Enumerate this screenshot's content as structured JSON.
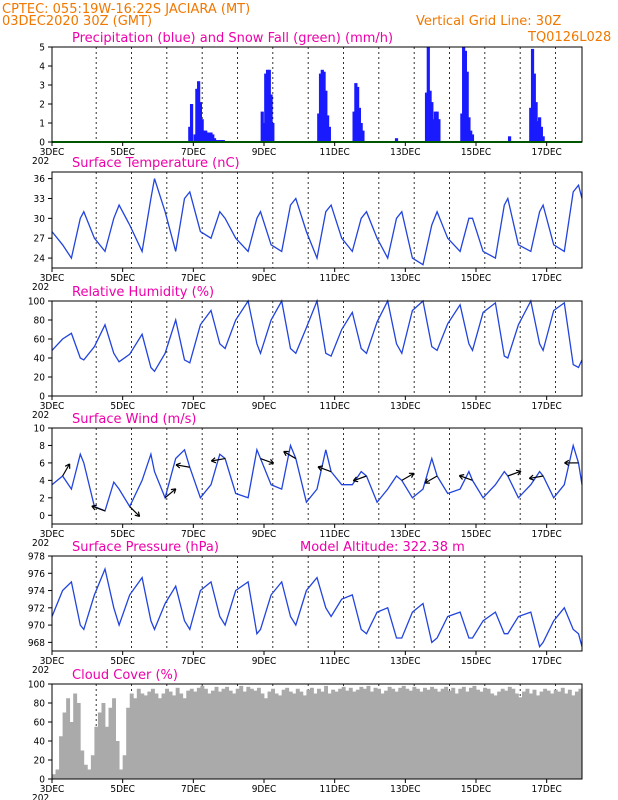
{
  "header": {
    "line1": "CPTEC:   055:19W-16:22S   JACIARA (MT)",
    "line2": "03DEC2020 30Z (GMT)",
    "grid_note": "Vertical Grid Line: 30Z",
    "code": "TQ0126L028"
  },
  "x_axis": {
    "range_days": [
      3,
      18
    ],
    "tick_labels": [
      "3DEC",
      "5DEC",
      "7DEC",
      "9DEC",
      "11DEC",
      "13DEC",
      "15DEC",
      "17DEC"
    ],
    "tick_days": [
      3,
      5,
      7,
      9,
      11,
      13,
      15,
      17
    ],
    "grid_days": [
      4.25,
      5.25,
      6.25,
      7.25,
      8.25,
      9.25,
      10.25,
      11.25,
      12.25,
      13.25,
      14.25,
      15.25,
      16.25,
      17.25
    ],
    "truncated_label": "202"
  },
  "colors": {
    "header": "#f07800",
    "title": "#ee00aa",
    "precip": "#1a1aff",
    "snow": "#00aa00",
    "line": "#2244dd",
    "cloud": "#aaaaaa",
    "arrow": "#000000"
  },
  "chart_data": [
    {
      "type": "bar",
      "title": "Precipitation (blue) and Snow Fall (green) (mm/h)",
      "ylim": [
        0,
        5
      ],
      "yticks": [
        0,
        1,
        2,
        3,
        4,
        5
      ],
      "series": [
        {
          "name": "Precipitation",
          "x": [
            6.9,
            6.95,
            7.05,
            7.1,
            7.15,
            7.2,
            7.25,
            7.3,
            7.35,
            7.4,
            7.45,
            7.5,
            7.55,
            7.6,
            7.65,
            7.7,
            7.75,
            7.8,
            7.85,
            8.95,
            9.0,
            9.05,
            9.1,
            9.15,
            9.2,
            9.25,
            10.55,
            10.6,
            10.65,
            10.7,
            10.75,
            10.8,
            10.85,
            11.55,
            11.6,
            11.65,
            11.7,
            11.75,
            11.8,
            12.75,
            13.6,
            13.65,
            13.7,
            13.75,
            13.8,
            13.85,
            13.9,
            13.95,
            14.6,
            14.65,
            14.7,
            14.75,
            14.8,
            14.85,
            14.9,
            15.95,
            16.55,
            16.6,
            16.65,
            16.7,
            16.75,
            16.8,
            16.85,
            16.9
          ],
          "values": [
            0.8,
            2.0,
            0.4,
            2.8,
            3.2,
            2.1,
            1.2,
            0.6,
            0.6,
            0.5,
            0.5,
            0.5,
            0.4,
            0.2,
            0.1,
            0.1,
            0.1,
            0.1,
            0.1,
            1.6,
            1.0,
            3.6,
            3.8,
            3.8,
            2.5,
            1.0,
            1.5,
            3.6,
            3.8,
            3.7,
            2.7,
            1.4,
            0.8,
            1.6,
            3.1,
            2.9,
            1.8,
            1.0,
            0.6,
            0.2,
            2.6,
            5.0,
            2.7,
            2.1,
            1.2,
            1.6,
            1.6,
            1.2,
            1.5,
            5.0,
            4.8,
            3.7,
            1.3,
            0.6,
            0.4,
            0.3,
            1.8,
            4.9,
            3.6,
            2.1,
            1.1,
            1.3,
            0.8,
            0.3
          ]
        },
        {
          "name": "Snow Fall",
          "x": [
            3,
            18
          ],
          "values": [
            0,
            0
          ]
        }
      ]
    },
    {
      "type": "line",
      "title": "Surface Temperature (nC)",
      "ylim": [
        22.5,
        37
      ],
      "yticks": [
        24,
        27,
        30,
        33,
        36
      ],
      "series": [
        {
          "name": "Surface Temperature",
          "x": [
            3.0,
            3.3,
            3.55,
            3.8,
            3.9,
            4.2,
            4.5,
            4.75,
            4.9,
            5.2,
            5.55,
            5.8,
            5.9,
            6.2,
            6.5,
            6.75,
            6.9,
            7.2,
            7.5,
            7.75,
            7.9,
            8.2,
            8.55,
            8.8,
            8.9,
            9.2,
            9.5,
            9.75,
            9.9,
            10.2,
            10.5,
            10.75,
            10.9,
            11.2,
            11.5,
            11.75,
            11.9,
            12.2,
            12.5,
            12.75,
            12.9,
            13.2,
            13.5,
            13.75,
            13.9,
            14.2,
            14.55,
            14.8,
            14.9,
            15.2,
            15.55,
            15.8,
            15.9,
            16.2,
            16.55,
            16.8,
            16.9,
            17.2,
            17.5,
            17.75,
            17.9,
            18.0
          ],
          "values": [
            28,
            26,
            24,
            30,
            31,
            27,
            25,
            30,
            32,
            29,
            25,
            33,
            36,
            31,
            25,
            33,
            34,
            28,
            27,
            31,
            30,
            27,
            25,
            30,
            31,
            26,
            25,
            32,
            33,
            28,
            24,
            31,
            32,
            27,
            25,
            30,
            31,
            27,
            24,
            30,
            31,
            24,
            23,
            29,
            31,
            27,
            25,
            30,
            30,
            25,
            24,
            32,
            33,
            26,
            25,
            31,
            32,
            26,
            25,
            34,
            35,
            33
          ]
        }
      ]
    },
    {
      "type": "line",
      "title": "Relative Humidity (%)",
      "ylim": [
        0,
        100
      ],
      "yticks": [
        0,
        20,
        40,
        60,
        80,
        100
      ],
      "series": [
        {
          "name": "Relative Humidity",
          "x": [
            3.0,
            3.3,
            3.55,
            3.8,
            3.9,
            4.2,
            4.5,
            4.75,
            4.9,
            5.2,
            5.55,
            5.8,
            5.9,
            6.2,
            6.5,
            6.75,
            6.9,
            7.2,
            7.5,
            7.75,
            7.9,
            8.2,
            8.55,
            8.8,
            8.9,
            9.2,
            9.5,
            9.75,
            9.9,
            10.2,
            10.5,
            10.75,
            10.9,
            11.2,
            11.5,
            11.75,
            11.9,
            12.2,
            12.5,
            12.75,
            12.9,
            13.2,
            13.5,
            13.75,
            13.9,
            14.2,
            14.55,
            14.8,
            14.9,
            15.2,
            15.55,
            15.8,
            15.9,
            16.2,
            16.55,
            16.8,
            16.9,
            17.2,
            17.5,
            17.75,
            17.9,
            18.0
          ],
          "values": [
            48,
            60,
            66,
            40,
            38,
            52,
            75,
            45,
            36,
            44,
            65,
            30,
            26,
            45,
            80,
            38,
            35,
            75,
            90,
            55,
            50,
            80,
            100,
            55,
            45,
            80,
            100,
            50,
            45,
            72,
            100,
            45,
            42,
            70,
            88,
            50,
            45,
            78,
            100,
            55,
            45,
            90,
            100,
            52,
            48,
            76,
            96,
            55,
            48,
            88,
            98,
            42,
            40,
            75,
            100,
            55,
            48,
            90,
            98,
            33,
            30,
            38
          ]
        }
      ]
    },
    {
      "type": "line",
      "title": "Surface Wind (m/s)",
      "ylim": [
        -1,
        10
      ],
      "yticks": [
        0,
        2,
        4,
        6,
        8,
        10
      ],
      "series": [
        {
          "name": "Surface Wind",
          "x": [
            3.0,
            3.3,
            3.55,
            3.8,
            3.9,
            4.2,
            4.5,
            4.75,
            4.9,
            5.2,
            5.55,
            5.8,
            5.9,
            6.2,
            6.5,
            6.75,
            6.9,
            7.2,
            7.5,
            7.75,
            7.9,
            8.2,
            8.55,
            8.8,
            8.9,
            9.2,
            9.5,
            9.75,
            9.9,
            10.2,
            10.5,
            10.75,
            10.9,
            11.2,
            11.5,
            11.75,
            11.9,
            12.2,
            12.5,
            12.75,
            12.9,
            13.2,
            13.5,
            13.75,
            13.9,
            14.2,
            14.55,
            14.8,
            14.9,
            15.2,
            15.55,
            15.8,
            15.9,
            16.2,
            16.55,
            16.8,
            16.9,
            17.2,
            17.5,
            17.75,
            17.9,
            18.0
          ],
          "values": [
            3.5,
            4.5,
            3.0,
            7.0,
            6.0,
            1.0,
            0.5,
            3.8,
            3.0,
            1.0,
            4.0,
            7.0,
            5.0,
            2.0,
            6.5,
            7.5,
            5.5,
            2.0,
            3.5,
            7.0,
            6.5,
            2.5,
            2.0,
            7.5,
            6.5,
            3.5,
            3.0,
            8.0,
            6.5,
            1.5,
            3.0,
            7.5,
            5.0,
            3.5,
            3.5,
            5.0,
            4.5,
            1.5,
            3.0,
            4.5,
            4.0,
            2.0,
            3.0,
            6.5,
            4.5,
            2.5,
            3.0,
            5.0,
            4.0,
            2.0,
            3.5,
            5.0,
            4.5,
            2.0,
            3.5,
            5.0,
            4.5,
            2.0,
            3.5,
            8.0,
            6.0,
            3.5
          ]
        }
      ]
    },
    {
      "type": "line",
      "title": "Surface Pressure (hPa)",
      "annotation": "Model Altitude: 322.38 m",
      "ylim": [
        967,
        978
      ],
      "yticks": [
        968,
        970,
        972,
        974,
        976,
        978
      ],
      "series": [
        {
          "name": "Surface Pressure",
          "x": [
            3.0,
            3.3,
            3.55,
            3.8,
            3.9,
            4.2,
            4.5,
            4.75,
            4.9,
            5.2,
            5.55,
            5.8,
            5.9,
            6.2,
            6.5,
            6.75,
            6.9,
            7.2,
            7.5,
            7.75,
            7.9,
            8.2,
            8.55,
            8.8,
            8.9,
            9.2,
            9.5,
            9.75,
            9.9,
            10.2,
            10.5,
            10.75,
            10.9,
            11.2,
            11.5,
            11.75,
            11.9,
            12.2,
            12.5,
            12.75,
            12.9,
            13.2,
            13.5,
            13.75,
            13.9,
            14.2,
            14.55,
            14.8,
            14.9,
            15.2,
            15.55,
            15.8,
            15.9,
            16.2,
            16.55,
            16.8,
            16.9,
            17.2,
            17.5,
            17.75,
            17.9,
            18.0
          ],
          "values": [
            971,
            974,
            975,
            970,
            969.5,
            973.5,
            976.5,
            972,
            970,
            973.5,
            975.5,
            970.5,
            969.5,
            972.5,
            974.5,
            970.5,
            969.5,
            974,
            975,
            971,
            970,
            974,
            975,
            969,
            969.5,
            973.5,
            975,
            971,
            970,
            974,
            975.5,
            972,
            971,
            973,
            973.5,
            969.5,
            969,
            971.5,
            972,
            968.5,
            968.5,
            971.5,
            972.5,
            968,
            968.5,
            971,
            971.5,
            968.5,
            968.5,
            970.5,
            971.5,
            969,
            969,
            971,
            971.5,
            967.5,
            968,
            970.5,
            972,
            969.5,
            969,
            967.5
          ]
        }
      ]
    },
    {
      "type": "bar",
      "title": "Cloud Cover (%)",
      "ylim": [
        0,
        100
      ],
      "yticks": [
        0,
        20,
        40,
        60,
        80,
        100
      ],
      "series": [
        {
          "name": "Cloud Cover",
          "x": [
            3.0,
            3.1,
            3.2,
            3.3,
            3.4,
            3.5,
            3.6,
            3.7,
            3.8,
            3.9,
            4.0,
            4.1,
            4.2,
            4.3,
            4.4,
            4.5,
            4.6,
            4.7,
            4.8,
            4.9,
            5.0,
            5.1,
            5.2,
            5.3,
            5.4,
            5.5,
            5.6,
            5.7,
            5.8,
            5.9,
            6.0,
            6.1,
            6.2,
            6.3,
            6.4,
            6.5,
            6.6,
            6.7,
            6.8,
            6.9,
            7.0,
            7.1,
            7.2,
            7.3,
            7.4,
            7.5,
            7.6,
            7.7,
            7.8,
            7.9,
            8.0,
            8.1,
            8.2,
            8.3,
            8.4,
            8.5,
            8.6,
            8.7,
            8.8,
            8.9,
            9.0,
            9.1,
            9.2,
            9.3,
            9.4,
            9.5,
            9.6,
            9.7,
            9.8,
            9.9,
            10.0,
            10.1,
            10.2,
            10.3,
            10.4,
            10.5,
            10.6,
            10.7,
            10.8,
            10.9,
            11.0,
            11.1,
            11.2,
            11.3,
            11.4,
            11.5,
            11.6,
            11.7,
            11.8,
            11.9,
            12.0,
            12.1,
            12.2,
            12.3,
            12.4,
            12.5,
            12.6,
            12.7,
            12.8,
            12.9,
            13.0,
            13.1,
            13.2,
            13.3,
            13.4,
            13.5,
            13.6,
            13.7,
            13.8,
            13.9,
            14.0,
            14.1,
            14.2,
            14.3,
            14.4,
            14.5,
            14.6,
            14.7,
            14.8,
            14.9,
            15.0,
            15.1,
            15.2,
            15.3,
            15.4,
            15.5,
            15.6,
            15.7,
            15.8,
            15.9,
            16.0,
            16.1,
            16.2,
            16.3,
            16.4,
            16.5,
            16.6,
            16.7,
            16.8,
            16.9,
            17.0,
            17.1,
            17.2,
            17.3,
            17.4,
            17.5,
            17.6,
            17.7,
            17.8,
            17.9
          ],
          "values": [
            5,
            10,
            45,
            70,
            85,
            60,
            90,
            80,
            30,
            15,
            10,
            25,
            55,
            70,
            80,
            55,
            75,
            85,
            40,
            10,
            25,
            75,
            90,
            85,
            95,
            90,
            88,
            92,
            95,
            90,
            85,
            90,
            95,
            92,
            88,
            96,
            90,
            85,
            93,
            95,
            92,
            96,
            98,
            95,
            90,
            93,
            97,
            92,
            95,
            97,
            93,
            90,
            95,
            98,
            92,
            97,
            95,
            93,
            96,
            90,
            85,
            92,
            95,
            90,
            88,
            94,
            96,
            92,
            90,
            95,
            92,
            88,
            94,
            96,
            90,
            95,
            92,
            98,
            90,
            94,
            92,
            95,
            97,
            93,
            96,
            92,
            94,
            97,
            95,
            98,
            92,
            96,
            95,
            90,
            93,
            97,
            95,
            92,
            96,
            98,
            95,
            93,
            97,
            95,
            92,
            96,
            94,
            97,
            95,
            92,
            95,
            97,
            93,
            96,
            90,
            95,
            97,
            92,
            96,
            98,
            94,
            92,
            96,
            95,
            90,
            88,
            92,
            95,
            93,
            97,
            95,
            90,
            86,
            92,
            95,
            90,
            94,
            88,
            92,
            95,
            93,
            90,
            94,
            92,
            96,
            90,
            94,
            88,
            92,
            95
          ]
        }
      ]
    }
  ]
}
